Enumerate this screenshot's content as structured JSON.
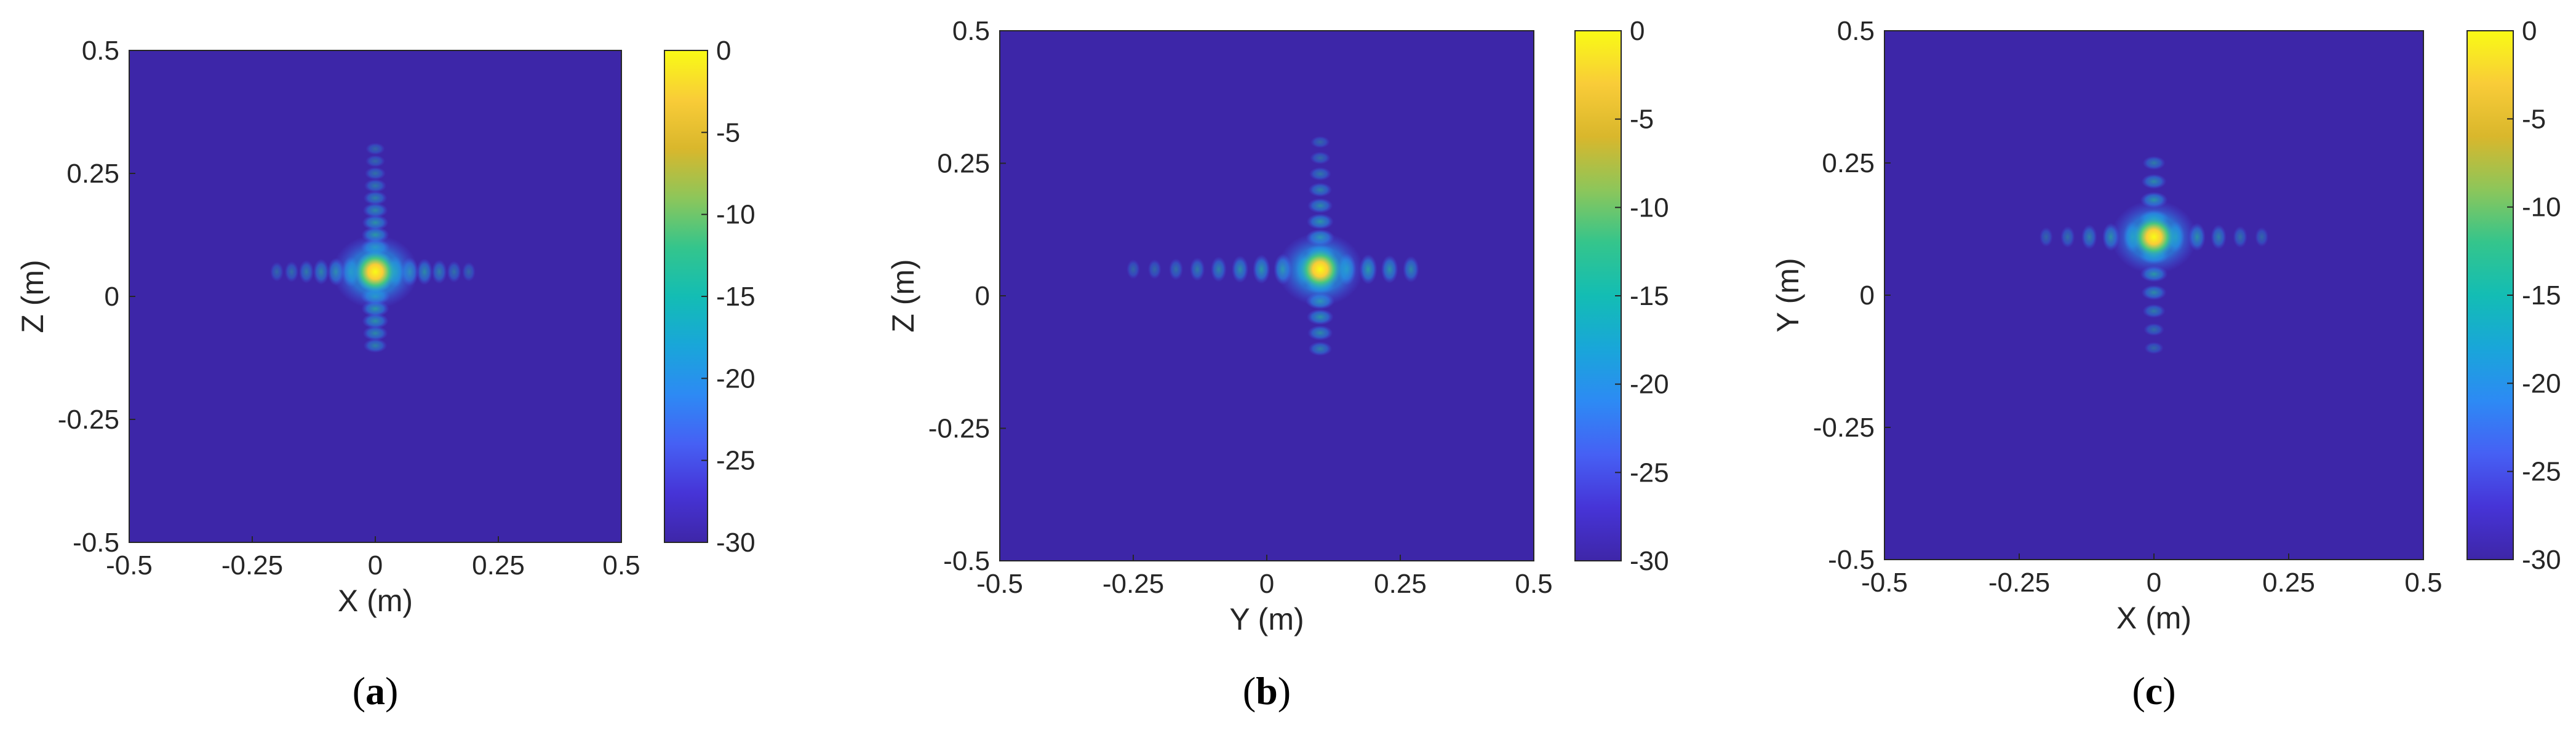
{
  "colors": {
    "background_level": "#3d26a8",
    "colormap": [
      "#3e26a8",
      "#4634d7",
      "#4660f4",
      "#2d8af4",
      "#19a6d9",
      "#13bdb4",
      "#34c58c",
      "#8dc65a",
      "#d9b72c",
      "#f9cc38",
      "#f9fb15"
    ]
  },
  "chart_data": [
    {
      "type": "heatmap",
      "caption_letter": "a",
      "xlabel": "X (m)",
      "ylabel": "Z (m)",
      "xlim": [
        -0.5,
        0.5
      ],
      "ylim": [
        -0.5,
        0.5
      ],
      "xticks": [
        "-0.5",
        "-0.25",
        "0",
        "0.25",
        "0.5"
      ],
      "yticks": [
        "-0.5",
        "-0.25",
        "0",
        "0.25",
        "0.5"
      ],
      "colorbar": {
        "range": [
          -30,
          0
        ],
        "ticks": [
          "0",
          "-5",
          "-10",
          "-15",
          "-20",
          "-25",
          "-30"
        ]
      },
      "peak": {
        "x": 0.0,
        "y": 0.05,
        "value_db": 0
      },
      "sidelobes_horizontal": {
        "extent": [
          -0.2,
          0.2
        ],
        "spacing": 0.03
      },
      "sidelobes_vertical": {
        "extent": [
          -0.1,
          0.3
        ],
        "spacing": 0.025
      }
    },
    {
      "type": "heatmap",
      "caption_letter": "b",
      "xlabel": "Y (m)",
      "ylabel": "Z (m)",
      "xlim": [
        -0.5,
        0.5
      ],
      "ylim": [
        -0.5,
        0.5
      ],
      "xticks": [
        "-0.5",
        "-0.25",
        "0",
        "0.25",
        "0.5"
      ],
      "yticks": [
        "-0.5",
        "-0.25",
        "0",
        "0.25",
        "0.5"
      ],
      "colorbar": {
        "range": [
          -30,
          0
        ],
        "ticks": [
          "0",
          "-5",
          "-10",
          "-15",
          "-20",
          "-25",
          "-30"
        ]
      },
      "peak": {
        "x": 0.1,
        "y": 0.05,
        "value_db": 0
      },
      "sidelobes_horizontal": {
        "extent": [
          -0.25,
          0.3
        ],
        "spacing": 0.04
      },
      "sidelobes_vertical": {
        "extent": [
          -0.1,
          0.3
        ],
        "spacing": 0.03
      }
    },
    {
      "type": "heatmap",
      "caption_letter": "c",
      "xlabel": "X (m)",
      "ylabel": "Y (m)",
      "xlim": [
        -0.5,
        0.5
      ],
      "ylim": [
        -0.5,
        0.5
      ],
      "xticks": [
        "-0.5",
        "-0.25",
        "0",
        "0.25",
        "0.5"
      ],
      "yticks": [
        "-0.5",
        "-0.25",
        "0",
        "0.25",
        "0.5"
      ],
      "colorbar": {
        "range": [
          -30,
          0
        ],
        "ticks": [
          "0",
          "-5",
          "-10",
          "-15",
          "-20",
          "-25",
          "-30"
        ]
      },
      "peak": {
        "x": 0.0,
        "y": 0.11,
        "value_db": 0
      },
      "sidelobes_horizontal": {
        "extent": [
          -0.2,
          0.2
        ],
        "spacing": 0.04
      },
      "sidelobes_vertical": {
        "extent": [
          -0.1,
          0.28
        ],
        "spacing": 0.035
      }
    }
  ]
}
